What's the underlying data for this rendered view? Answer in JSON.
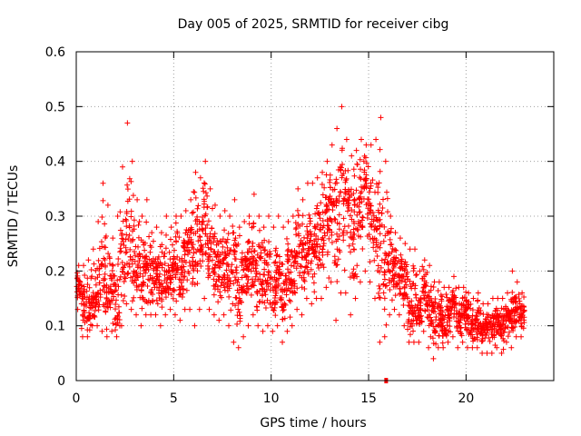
{
  "chart_data": {
    "type": "scatter",
    "title": "Day 005 of 2025, SRMTID for receiver cibg",
    "xlabel": "GPS time / hours",
    "ylabel": "SRMTID / TECUs",
    "xlim": [
      0,
      24.5
    ],
    "ylim": [
      0,
      0.6
    ],
    "grid": true,
    "marker": "plus",
    "x_ticks": [
      {
        "value": 0,
        "label": "0"
      },
      {
        "value": 5,
        "label": "5"
      },
      {
        "value": 10,
        "label": "10"
      },
      {
        "value": 15,
        "label": "15"
      },
      {
        "value": 20,
        "label": "20"
      }
    ],
    "y_ticks": [
      {
        "value": 0,
        "label": "0"
      },
      {
        "value": 0.1,
        "label": "0.1"
      },
      {
        "value": 0.2,
        "label": "0.2"
      },
      {
        "value": 0.3,
        "label": "0.3"
      },
      {
        "value": 0.4,
        "label": "0.4"
      },
      {
        "value": 0.5,
        "label": "0.5"
      },
      {
        "value": 0.6,
        "label": "0.6"
      }
    ],
    "series": [
      {
        "name": "SRMTID",
        "color": "#ff0000",
        "x": [
          0.0,
          0.25,
          0.5,
          0.75,
          1.0,
          1.25,
          1.5,
          1.75,
          2.0,
          2.25,
          2.5,
          2.75,
          3.0,
          3.25,
          3.5,
          3.75,
          4.0,
          4.25,
          4.5,
          4.75,
          5.0,
          5.25,
          5.5,
          5.75,
          6.0,
          6.25,
          6.5,
          6.75,
          7.0,
          7.25,
          7.5,
          7.75,
          8.0,
          8.25,
          8.5,
          8.75,
          9.0,
          9.25,
          9.5,
          9.75,
          10.0,
          10.25,
          10.5,
          10.75,
          11.0,
          11.25,
          11.5,
          11.75,
          12.0,
          12.25,
          12.5,
          12.75,
          13.0,
          13.25,
          13.5,
          13.75,
          14.0,
          14.25,
          14.5,
          14.75,
          15.0,
          15.25,
          15.5,
          15.75,
          16.0,
          16.25,
          16.5,
          16.75,
          17.0,
          17.25,
          17.5,
          17.75,
          18.0,
          18.25,
          18.5,
          18.75,
          19.0,
          19.25,
          19.5,
          19.75,
          20.0,
          20.25,
          20.5,
          20.75,
          21.0,
          21.25,
          21.5,
          21.75,
          22.0,
          22.25,
          22.5,
          22.75
        ],
        "y": [
          0.17,
          0.14,
          0.12,
          0.15,
          0.16,
          0.2,
          0.15,
          0.18,
          0.12,
          0.21,
          0.26,
          0.24,
          0.22,
          0.18,
          0.21,
          0.2,
          0.19,
          0.17,
          0.19,
          0.2,
          0.21,
          0.19,
          0.22,
          0.23,
          0.24,
          0.26,
          0.28,
          0.24,
          0.21,
          0.2,
          0.21,
          0.19,
          0.22,
          0.16,
          0.2,
          0.21,
          0.23,
          0.2,
          0.18,
          0.2,
          0.17,
          0.2,
          0.16,
          0.18,
          0.2,
          0.24,
          0.22,
          0.25,
          0.24,
          0.26,
          0.27,
          0.3,
          0.32,
          0.3,
          0.34,
          0.32,
          0.28,
          0.3,
          0.33,
          0.35,
          0.31,
          0.27,
          0.26,
          0.25,
          0.22,
          0.21,
          0.2,
          0.18,
          0.13,
          0.14,
          0.12,
          0.16,
          0.13,
          0.11,
          0.12,
          0.1,
          0.12,
          0.14,
          0.11,
          0.13,
          0.12,
          0.1,
          0.11,
          0.09,
          0.1,
          0.1,
          0.11,
          0.1,
          0.12,
          0.11,
          0.13,
          0.12
        ],
        "upper": [
          0.21,
          0.21,
          0.22,
          0.24,
          0.29,
          0.36,
          0.32,
          0.26,
          0.3,
          0.39,
          0.47,
          0.4,
          0.33,
          0.3,
          0.33,
          0.27,
          0.28,
          0.27,
          0.3,
          0.28,
          0.3,
          0.3,
          0.31,
          0.33,
          0.38,
          0.37,
          0.4,
          0.35,
          0.32,
          0.3,
          0.31,
          0.3,
          0.33,
          0.28,
          0.29,
          0.3,
          0.34,
          0.3,
          0.28,
          0.3,
          0.28,
          0.3,
          0.28,
          0.29,
          0.3,
          0.35,
          0.33,
          0.36,
          0.36,
          0.37,
          0.38,
          0.4,
          0.43,
          0.46,
          0.5,
          0.44,
          0.41,
          0.42,
          0.44,
          0.43,
          0.43,
          0.44,
          0.48,
          0.4,
          0.3,
          0.27,
          0.26,
          0.25,
          0.24,
          0.24,
          0.2,
          0.22,
          0.21,
          0.18,
          0.18,
          0.17,
          0.17,
          0.19,
          0.17,
          0.17,
          0.16,
          0.15,
          0.16,
          0.14,
          0.14,
          0.15,
          0.15,
          0.15,
          0.16,
          0.2,
          0.18,
          0.16
        ],
        "lower": [
          0.13,
          0.08,
          0.08,
          0.1,
          0.1,
          0.09,
          0.08,
          0.09,
          0.08,
          0.1,
          0.14,
          0.13,
          0.12,
          0.1,
          0.12,
          0.12,
          0.12,
          0.1,
          0.12,
          0.13,
          0.12,
          0.11,
          0.13,
          0.13,
          0.1,
          0.13,
          0.15,
          0.13,
          0.12,
          0.11,
          0.12,
          0.1,
          0.07,
          0.06,
          0.08,
          0.1,
          0.12,
          0.1,
          0.09,
          0.1,
          0.09,
          0.1,
          0.07,
          0.09,
          0.1,
          0.13,
          0.12,
          0.15,
          0.14,
          0.15,
          0.15,
          0.17,
          0.18,
          0.11,
          0.16,
          0.16,
          0.12,
          0.15,
          0.18,
          0.2,
          0.18,
          0.15,
          0.07,
          0.08,
          0.12,
          0.13,
          0.12,
          0.1,
          0.07,
          0.07,
          0.07,
          0.09,
          0.06,
          0.04,
          0.06,
          0.06,
          0.07,
          0.08,
          0.06,
          0.07,
          0.06,
          0.06,
          0.06,
          0.05,
          0.05,
          0.05,
          0.06,
          0.05,
          0.07,
          0.06,
          0.08,
          0.08
        ],
        "outlier": {
          "x": 15.9,
          "y": 0.0
        }
      }
    ]
  }
}
